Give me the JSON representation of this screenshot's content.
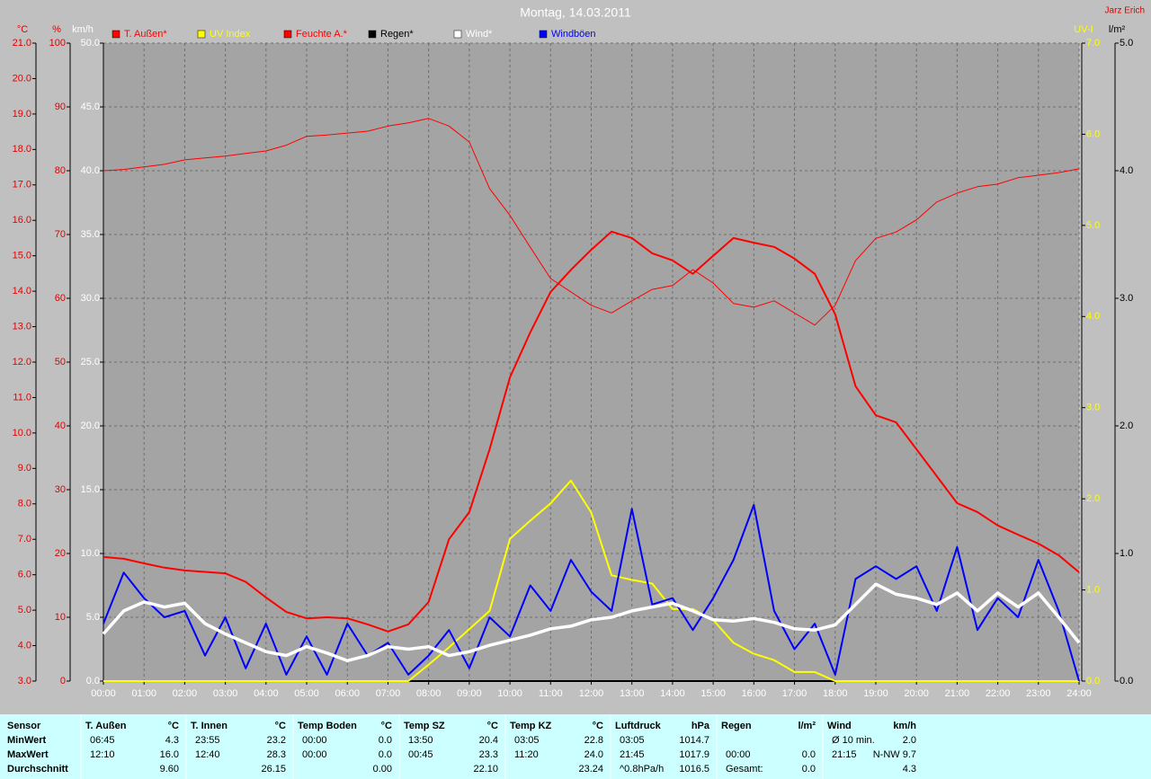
{
  "chart_data": {
    "type": "line",
    "title": "Montag, 14.03.2011",
    "author": "Jarz Erich",
    "x": [
      0,
      0.5,
      1,
      1.5,
      2,
      2.5,
      3,
      3.5,
      4,
      4.5,
      5,
      5.5,
      6,
      6.5,
      7,
      7.5,
      8,
      8.5,
      9,
      9.5,
      10,
      10.5,
      11,
      11.5,
      12,
      12.5,
      13,
      13.5,
      14,
      14.5,
      15,
      15.5,
      16,
      16.5,
      17,
      17.5,
      18,
      18.5,
      19,
      19.5,
      20,
      20.5,
      21,
      21.5,
      22,
      22.5,
      23,
      23.5,
      24
    ],
    "xlim": [
      0,
      24
    ],
    "xticks": [
      {
        "value": 0,
        "label": "00:00"
      },
      {
        "value": 1,
        "label": "01:00"
      },
      {
        "value": 2,
        "label": "02:00"
      },
      {
        "value": 3,
        "label": "03:00"
      },
      {
        "value": 4,
        "label": "04:00"
      },
      {
        "value": 5,
        "label": "05:00"
      },
      {
        "value": 6,
        "label": "06:00"
      },
      {
        "value": 7,
        "label": "07:00"
      },
      {
        "value": 8,
        "label": "08:00"
      },
      {
        "value": 9,
        "label": "09:00"
      },
      {
        "value": 10,
        "label": "10:00"
      },
      {
        "value": 11,
        "label": "11:00"
      },
      {
        "value": 12,
        "label": "12:00"
      },
      {
        "value": 13,
        "label": "13:00"
      },
      {
        "value": 14,
        "label": "14:00"
      },
      {
        "value": 15,
        "label": "15:00"
      },
      {
        "value": 16,
        "label": "16:00"
      },
      {
        "value": 17,
        "label": "17:00"
      },
      {
        "value": 18,
        "label": "18:00"
      },
      {
        "value": 19,
        "label": "19:00"
      },
      {
        "value": 20,
        "label": "20:00"
      },
      {
        "value": 21,
        "label": "21:00"
      },
      {
        "value": 22,
        "label": "22:00"
      },
      {
        "value": 23,
        "label": "23:00"
      },
      {
        "value": 24,
        "label": "24:00"
      }
    ],
    "ylabel": "°C",
    "ylim": [
      3,
      21
    ],
    "yticks": [
      {
        "value": 3,
        "label": "3.0"
      },
      {
        "value": 4,
        "label": "4.0"
      },
      {
        "value": 5,
        "label": "5.0"
      },
      {
        "value": 6,
        "label": "6.0"
      },
      {
        "value": 7,
        "label": "7.0"
      },
      {
        "value": 8,
        "label": "8.0"
      },
      {
        "value": 9,
        "label": "9.0"
      },
      {
        "value": 10,
        "label": "10.0"
      },
      {
        "value": 11,
        "label": "11.0"
      },
      {
        "value": 12,
        "label": "12.0"
      },
      {
        "value": 13,
        "label": "13.0"
      },
      {
        "value": 14,
        "label": "14.0"
      },
      {
        "value": 15,
        "label": "15.0"
      },
      {
        "value": 16,
        "label": "16.0"
      },
      {
        "value": 17,
        "label": "17.0"
      },
      {
        "value": 18,
        "label": "18.0"
      },
      {
        "value": 19,
        "label": "19.0"
      },
      {
        "value": 20,
        "label": "20.0"
      },
      {
        "value": 21,
        "label": "21.0"
      }
    ],
    "y2label": "%",
    "y2lim": [
      0,
      100
    ],
    "y2ticks": [
      0,
      10,
      20,
      30,
      40,
      50,
      60,
      70,
      80,
      90,
      100
    ],
    "y3label": "km/h",
    "y3lim": [
      0,
      50
    ],
    "y3ticks": [
      {
        "value": 0,
        "label": "0.0"
      },
      {
        "value": 5,
        "label": "5.0"
      },
      {
        "value": 10,
        "label": "10.0"
      },
      {
        "value": 15,
        "label": "15.0"
      },
      {
        "value": 20,
        "label": "20.0"
      },
      {
        "value": 25,
        "label": "25.0"
      },
      {
        "value": 30,
        "label": "30.0"
      },
      {
        "value": 35,
        "label": "35.0"
      },
      {
        "value": 40,
        "label": "40.0"
      },
      {
        "value": 45,
        "label": "45.0"
      },
      {
        "value": 50,
        "label": "50.0"
      }
    ],
    "y4label": "UV-I",
    "y4lim": [
      0,
      7
    ],
    "y4ticks": [
      {
        "value": 0,
        "label": "0.0"
      },
      {
        "value": 1,
        "label": "1.0"
      },
      {
        "value": 2,
        "label": "2.0"
      },
      {
        "value": 3,
        "label": "3.0"
      },
      {
        "value": 4,
        "label": "4.0"
      },
      {
        "value": 5,
        "label": "5.0"
      },
      {
        "value": 6,
        "label": "6.0"
      },
      {
        "value": 7,
        "label": "7.0"
      }
    ],
    "y5label": "l/m²",
    "y5lim": [
      0,
      5
    ],
    "y5ticks": [
      {
        "value": 0,
        "label": "0.0"
      },
      {
        "value": 1,
        "label": "1.0"
      },
      {
        "value": 2,
        "label": "2.0"
      },
      {
        "value": 3,
        "label": "3.0"
      },
      {
        "value": 4,
        "label": "4.0"
      },
      {
        "value": 5,
        "label": "5.0"
      }
    ],
    "grid": true,
    "series": [
      {
        "name": "T. Außen*",
        "color": "#ff0000",
        "axis": "y",
        "values": [
          6.5,
          6.45,
          6.32,
          6.2,
          6.12,
          6.08,
          6.04,
          5.8,
          5.36,
          4.95,
          4.77,
          4.8,
          4.77,
          4.6,
          4.4,
          4.6,
          5.23,
          7.0,
          7.77,
          9.54,
          11.57,
          12.84,
          13.98,
          14.6,
          15.17,
          15.68,
          15.5,
          15.07,
          14.87,
          14.49,
          15.0,
          15.5,
          15.37,
          15.25,
          14.92,
          14.49,
          13.35,
          11.32,
          10.5,
          10.3,
          9.54,
          8.78,
          8.02,
          7.77,
          7.39,
          7.13,
          6.88,
          6.55,
          6.07
        ]
      },
      {
        "name": "UV Index",
        "color": "#ffff00",
        "axis": "y4",
        "values": [
          0,
          0,
          0,
          0,
          0,
          0,
          0,
          0,
          0,
          0,
          0,
          0,
          0,
          0,
          0,
          0,
          0.18,
          0.37,
          0.57,
          0.77,
          1.56,
          1.76,
          1.95,
          2.2,
          1.85,
          1.16,
          1.11,
          1.07,
          0.79,
          0.79,
          0.67,
          0.42,
          0.3,
          0.23,
          0.1,
          0.1,
          0,
          0,
          0,
          0,
          0,
          0,
          0,
          0,
          0,
          0,
          0,
          0,
          0
        ]
      },
      {
        "name": "Feuchte A.*",
        "color": "#ff0000",
        "axis": "y2",
        "values": [
          80,
          80.2,
          80.6,
          81,
          81.7,
          82,
          82.3,
          82.7,
          83.1,
          84,
          85.4,
          85.6,
          85.9,
          86.2,
          87,
          87.5,
          88.2,
          87,
          84.5,
          77.2,
          73,
          68,
          63.1,
          61,
          58.9,
          57.7,
          59.6,
          61.4,
          62,
          64.5,
          62.4,
          59.2,
          58.6,
          59.6,
          57.7,
          55.8,
          58.9,
          65.9,
          69.4,
          70.4,
          72.3,
          75.1,
          76.5,
          77.5,
          77.9,
          78.9,
          79.3,
          79.7,
          80.3
        ]
      },
      {
        "name": "Regen*",
        "color": "#000000",
        "axis": "y5",
        "values": [
          0,
          0,
          0,
          0,
          0,
          0,
          0,
          0,
          0,
          0,
          0,
          0,
          0,
          0,
          0,
          0,
          0,
          0,
          0,
          0,
          0,
          0,
          0,
          0,
          0,
          0,
          0,
          0,
          0,
          0,
          0,
          0,
          0,
          0,
          0,
          0,
          0,
          0,
          0,
          0,
          0,
          0,
          0,
          0,
          0,
          0,
          0,
          0,
          0
        ]
      },
      {
        "name": "Wind*",
        "color": "#ffffff",
        "axis": "y3",
        "values": [
          3.7,
          5.5,
          6.2,
          5.8,
          6.1,
          4.5,
          3.7,
          3.0,
          2.3,
          2.0,
          2.7,
          2.2,
          1.6,
          2.0,
          2.7,
          2.5,
          2.7,
          2.0,
          2.3,
          2.8,
          3.2,
          3.6,
          4.1,
          4.3,
          4.8,
          5.0,
          5.5,
          5.8,
          6.1,
          5.5,
          4.8,
          4.7,
          4.9,
          4.6,
          4.1,
          4.0,
          4.4,
          6.0,
          7.6,
          6.8,
          6.5,
          6.0,
          6.9,
          5.5,
          6.9,
          5.8,
          6.9,
          5.0,
          3.0
        ]
      },
      {
        "name": "Windböen",
        "color": "#0000ff",
        "axis": "y3",
        "values": [
          4.5,
          8.5,
          6.5,
          5.0,
          5.5,
          2.0,
          5.0,
          1.0,
          4.5,
          0.5,
          3.5,
          0.5,
          4.5,
          2.0,
          3.0,
          0.5,
          2.0,
          4.0,
          1.0,
          5.0,
          3.5,
          7.5,
          5.5,
          9.5,
          7.0,
          5.5,
          13.5,
          6.0,
          6.5,
          4.0,
          6.5,
          9.5,
          13.8,
          5.5,
          2.5,
          4.5,
          0.5,
          8.0,
          9.0,
          8.0,
          9.0,
          5.5,
          10.5,
          4.0,
          6.5,
          5.0,
          9.5,
          5.5,
          0.0
        ]
      }
    ]
  },
  "table": {
    "row_labels": [
      "Sensor",
      "MinWert",
      "MaxWert",
      "Durchschnitt"
    ],
    "groups": [
      {
        "header": [
          "T. Außen",
          "°C"
        ],
        "rows": [
          [
            "06:45",
            "4.3"
          ],
          [
            "12:10",
            "16.0"
          ],
          [
            null,
            "9.60"
          ]
        ]
      },
      {
        "header": [
          "T. Innen",
          "°C"
        ],
        "rows": [
          [
            "23:55",
            "23.2"
          ],
          [
            "12:40",
            "28.3"
          ],
          [
            null,
            "26.15"
          ]
        ]
      },
      {
        "header": [
          "Temp Boden",
          "°C"
        ],
        "rows": [
          [
            "00:00",
            "0.0"
          ],
          [
            "00:00",
            "0.0"
          ],
          [
            null,
            "0.00"
          ]
        ]
      },
      {
        "header": [
          "Temp SZ",
          "°C"
        ],
        "rows": [
          [
            "13:50",
            "20.4"
          ],
          [
            "00:45",
            "23.3"
          ],
          [
            null,
            "22.10"
          ]
        ]
      },
      {
        "header": [
          "Temp KZ",
          "°C"
        ],
        "rows": [
          [
            "03:05",
            "22.8"
          ],
          [
            "11:20",
            "24.0"
          ],
          [
            null,
            "23.24"
          ]
        ]
      },
      {
        "header": [
          "Luftdruck",
          "hPa"
        ],
        "rows": [
          [
            "03:05",
            "1014.7"
          ],
          [
            "21:45",
            "1017.9"
          ],
          [
            "^0.8hPa/h",
            "1016.5"
          ]
        ]
      },
      {
        "header": [
          "Regen",
          "l/m²"
        ],
        "rows": [
          [
            null,
            null
          ],
          [
            "00:00",
            "0.0"
          ],
          [
            "Gesamt:",
            "0.0"
          ]
        ]
      },
      {
        "header": [
          "Wind",
          "km/h"
        ],
        "rows": [
          [
            "Ø 10 min.",
            "2.0"
          ],
          [
            "21:15",
            "N-NW 9.7"
          ],
          [
            null,
            "4.3"
          ]
        ]
      }
    ]
  }
}
